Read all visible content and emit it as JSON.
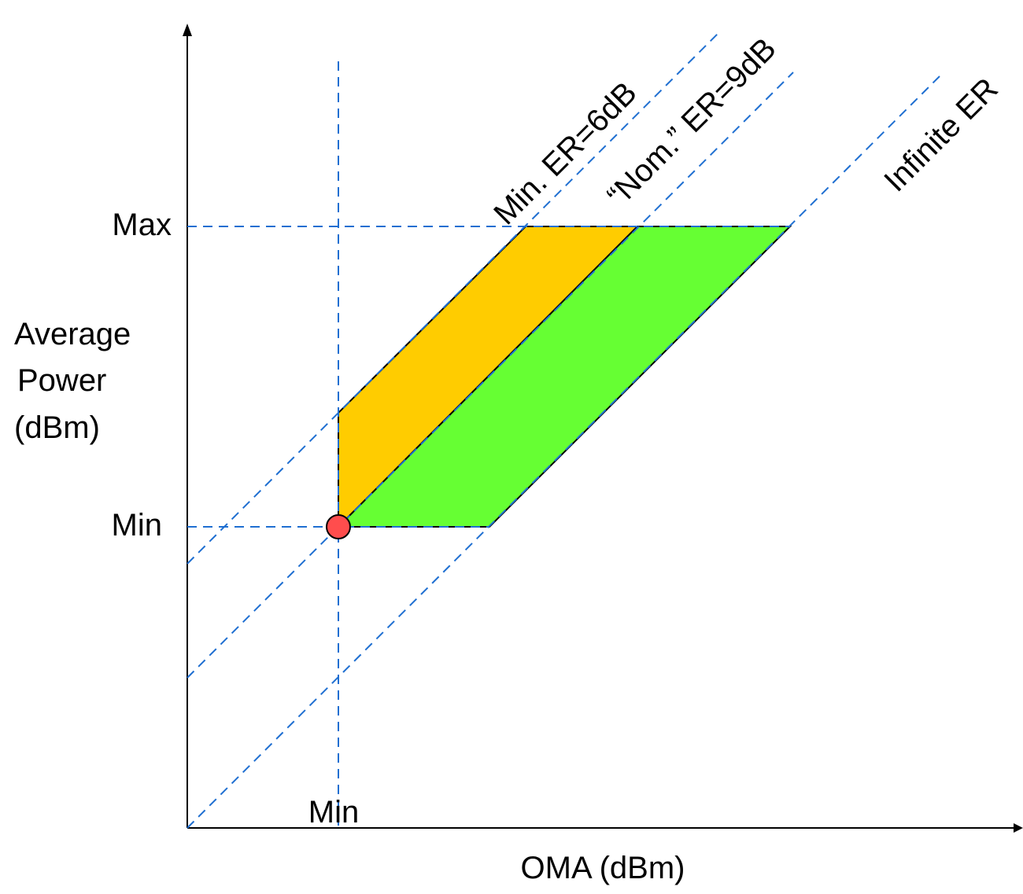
{
  "colors": {
    "guide": "#1f6fd1",
    "region_min_er": "#ffcc00",
    "region_nom_er": "#66ff33",
    "marker": "#ff4d4d"
  },
  "axes": {
    "y_label_lines": [
      "Average",
      "Power",
      "(dBm)"
    ],
    "x_label": "OMA (dBm)",
    "y_tick_max": "Max",
    "y_tick_min": "Min",
    "x_tick_min": "Min"
  },
  "lines": {
    "min_er": "Min. ER=6dB",
    "nom_er": "“Nom.” ER=9dB",
    "infinite_er": "Infinite ER"
  }
}
